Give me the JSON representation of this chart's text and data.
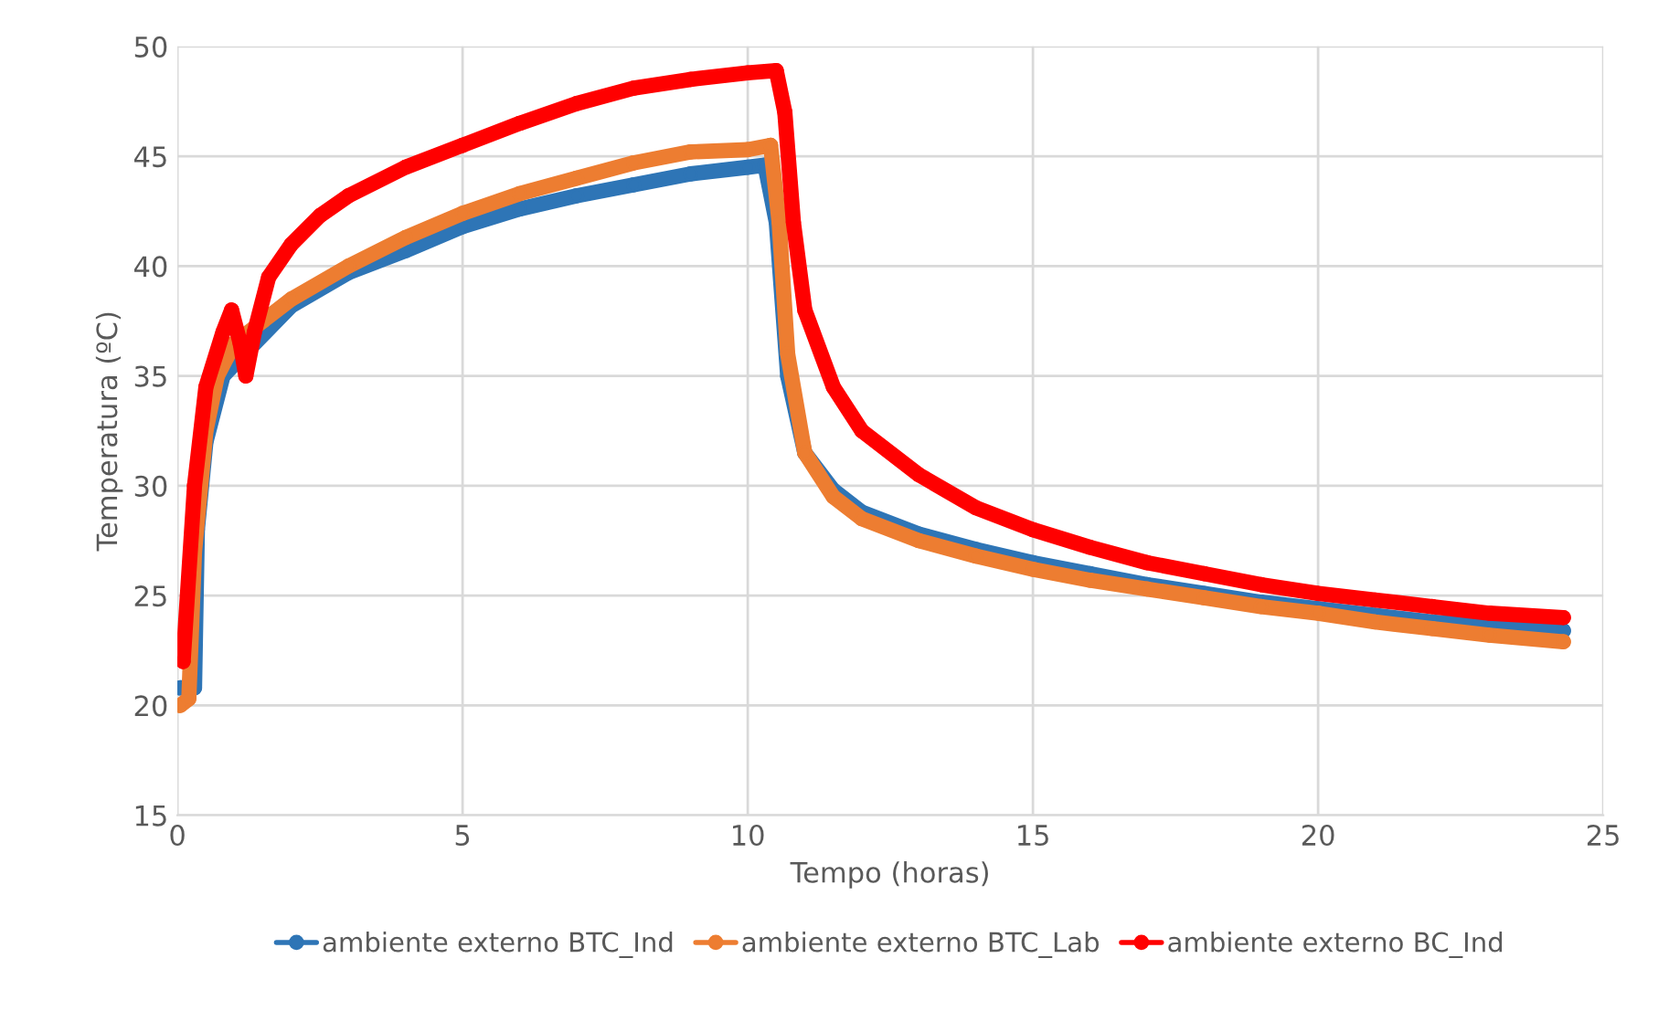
{
  "chart_data": {
    "type": "line",
    "xlabel": "Tempo (horas)",
    "ylabel": "Temperatura (ºC)",
    "xlim": [
      0,
      25
    ],
    "xticks": [
      0,
      5,
      10,
      15,
      20,
      25
    ],
    "ylim": [
      15,
      50
    ],
    "yticks": [
      15,
      20,
      25,
      30,
      35,
      40,
      45,
      50
    ],
    "grid": true,
    "legend": "bottom",
    "marker": "circle",
    "line_style": "solid",
    "series": [
      {
        "name": "ambiente externo BTC_Ind",
        "color": "#2e75b6",
        "x": [
          0.05,
          0.3,
          0.35,
          0.5,
          0.8,
          2,
          3,
          4,
          5,
          6,
          7,
          8,
          9,
          10,
          10.3,
          10.5,
          10.7,
          11,
          11.5,
          12,
          13,
          14,
          15,
          16,
          17,
          18,
          19,
          20,
          21,
          22,
          23,
          24.3
        ],
        "values": [
          20.8,
          20.8,
          28,
          32,
          35,
          38.2,
          39.7,
          40.7,
          41.8,
          42.6,
          43.2,
          43.7,
          44.2,
          44.5,
          44.6,
          42,
          35,
          31.5,
          29.8,
          28.8,
          27.8,
          27.1,
          26.5,
          26,
          25.5,
          25.1,
          24.7,
          24.4,
          24.1,
          23.8,
          23.6,
          23.4
        ]
      },
      {
        "name": "ambiente externo BTC_Lab",
        "color": "#ed7d31",
        "x": [
          0.05,
          0.2,
          0.3,
          0.5,
          0.7,
          1,
          1.5,
          2,
          3,
          4,
          5,
          6,
          7,
          8,
          9,
          10,
          10.4,
          10.55,
          10.7,
          11,
          11.5,
          12,
          13,
          14,
          15,
          16,
          17,
          18,
          19,
          20,
          21,
          22,
          23,
          24.3
        ],
        "values": [
          20,
          20.3,
          27,
          32.5,
          35,
          36.5,
          37.5,
          38.5,
          40,
          41.3,
          42.4,
          43.3,
          44,
          44.7,
          45.2,
          45.3,
          45.5,
          42,
          36,
          31.5,
          29.5,
          28.5,
          27.5,
          26.8,
          26.2,
          25.7,
          25.3,
          24.9,
          24.5,
          24.2,
          23.8,
          23.5,
          23.2,
          22.9
        ]
      },
      {
        "name": "ambiente externo BC_Ind",
        "color": "#ff0000",
        "x": [
          0.1,
          0.3,
          0.5,
          0.8,
          0.95,
          1.1,
          1.2,
          1.35,
          1.6,
          2,
          2.5,
          3,
          4,
          5,
          6,
          7,
          8,
          9,
          10,
          10.5,
          10.65,
          10.8,
          11,
          11.5,
          12,
          13,
          14,
          15,
          16,
          17,
          18,
          19,
          20,
          21,
          22,
          23,
          24.3
        ],
        "values": [
          22,
          30,
          34.5,
          37,
          38,
          36.5,
          35,
          37,
          39.5,
          41,
          42.3,
          43.2,
          44.5,
          45.5,
          46.5,
          47.4,
          48.1,
          48.5,
          48.8,
          48.9,
          47,
          42,
          38,
          34.5,
          32.5,
          30.5,
          29,
          28,
          27.2,
          26.5,
          26,
          25.5,
          25.1,
          24.8,
          24.5,
          24.2,
          24
        ]
      }
    ]
  }
}
